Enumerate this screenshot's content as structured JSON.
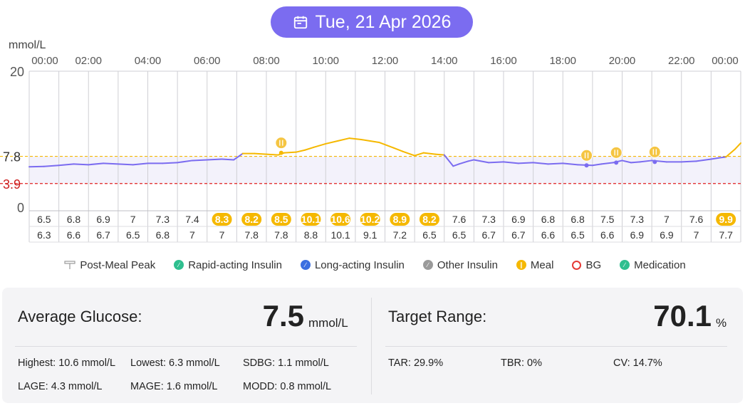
{
  "header": {
    "date_label": "Tue, 21 Apr 2026"
  },
  "chart_data": {
    "type": "line",
    "ylabel": "mmol/L",
    "ylim": [
      0,
      20
    ],
    "y_ticks": [
      "20",
      "7.8",
      "3.9",
      "0"
    ],
    "target_high": 7.8,
    "target_low": 3.9,
    "x_ticks": [
      "00:00",
      "02:00",
      "04:00",
      "06:00",
      "08:00",
      "10:00",
      "12:00",
      "14:00",
      "16:00",
      "18:00",
      "20:00",
      "22:00",
      "00:00"
    ],
    "series": [
      {
        "values": [
          [
            0,
            6.3
          ],
          [
            0.5,
            6.35
          ],
          [
            1,
            6.5
          ],
          [
            1.5,
            6.7
          ],
          [
            2,
            6.6
          ],
          [
            2.5,
            6.8
          ],
          [
            3,
            6.7
          ],
          [
            3.5,
            6.6
          ],
          [
            4,
            6.8
          ],
          [
            4.5,
            6.8
          ],
          [
            5,
            6.9
          ],
          [
            5.5,
            7.2
          ],
          [
            6,
            7.3
          ],
          [
            6.5,
            7.4
          ],
          [
            6.9,
            7.3
          ],
          [
            7.2,
            8.2
          ],
          [
            7.6,
            8.2
          ],
          [
            8,
            8.1
          ],
          [
            8.4,
            8.0
          ],
          [
            8.6,
            8.3
          ],
          [
            9,
            8.4
          ],
          [
            9.3,
            8.7
          ],
          [
            9.6,
            9.1
          ],
          [
            10,
            9.6
          ],
          [
            10.4,
            10.0
          ],
          [
            10.8,
            10.4
          ],
          [
            11.2,
            10.2
          ],
          [
            11.5,
            10.0
          ],
          [
            11.8,
            9.8
          ],
          [
            12.3,
            9.0
          ],
          [
            12.6,
            8.5
          ],
          [
            13,
            7.9
          ],
          [
            13.3,
            8.3
          ],
          [
            13.7,
            8.1
          ],
          [
            14,
            8.0
          ],
          [
            14.3,
            6.4
          ],
          [
            14.5,
            6.7
          ],
          [
            14.8,
            7.1
          ],
          [
            15,
            7.3
          ],
          [
            15.5,
            6.9
          ],
          [
            16,
            7.0
          ],
          [
            16.5,
            6.8
          ],
          [
            17,
            6.9
          ],
          [
            17.5,
            6.7
          ],
          [
            18,
            6.8
          ],
          [
            18.5,
            6.6
          ],
          [
            19,
            6.5
          ],
          [
            19.3,
            6.7
          ],
          [
            19.7,
            6.9
          ],
          [
            20,
            7.2
          ],
          [
            20.3,
            6.9
          ],
          [
            20.6,
            7.0
          ],
          [
            21,
            7.2
          ],
          [
            21.5,
            7.0
          ],
          [
            22,
            7.0
          ],
          [
            22.5,
            7.1
          ],
          [
            23,
            7.4
          ],
          [
            23.3,
            7.6
          ],
          [
            23.5,
            7.7
          ],
          [
            23.8,
            8.8
          ],
          [
            24,
            9.7
          ]
        ]
      }
    ],
    "hourly_top": [
      "6.5",
      "6.8",
      "6.9",
      "7",
      "7.3",
      "7.4",
      "8.3",
      "8.2",
      "8.5",
      "10.1",
      "10.6",
      "10.2",
      "8.9",
      "8.2",
      "7.6",
      "7.3",
      "6.9",
      "6.8",
      "6.8",
      "7.5",
      "7.3",
      "7",
      "7.6",
      "9.9"
    ],
    "hourly_bottom": [
      "6.3",
      "6.6",
      "6.7",
      "6.5",
      "6.8",
      "7",
      "7",
      "7.8",
      "7.8",
      "8.8",
      "10.1",
      "9.1",
      "7.2",
      "6.5",
      "6.5",
      "6.7",
      "6.7",
      "6.6",
      "6.5",
      "6.6",
      "6.9",
      "6.9",
      "7",
      "7.7"
    ],
    "meal_markers": [
      [
        8.5,
        8.3
      ],
      [
        18.8,
        6.5
      ],
      [
        19.8,
        6.9
      ],
      [
        21.1,
        7.0
      ]
    ],
    "colors": {
      "line": "#7b6cf0",
      "line_high": "#f5b800",
      "high_badge": "#f5b800",
      "target_high_line": "#f5b800",
      "target_low_line": "#e02020",
      "target_low_label": "#cc1f1f",
      "band": "#f3f2fb"
    }
  },
  "legend": [
    {
      "label": "Post-Meal Peak",
      "icon": "post-meal-peak-icon",
      "color": "#9a9a9a"
    },
    {
      "label": "Rapid-acting Insulin",
      "icon": "rapid-insulin-icon",
      "color": "#2fbf8f"
    },
    {
      "label": "Long-acting Insulin",
      "icon": "long-insulin-icon",
      "color": "#3b6fe0"
    },
    {
      "label": "Other Insulin",
      "icon": "other-insulin-icon",
      "color": "#9a9a9a"
    },
    {
      "label": "Meal",
      "icon": "meal-icon",
      "color": "#f5b800"
    },
    {
      "label": "BG",
      "icon": "bg-icon",
      "color": "#e53935"
    },
    {
      "label": "Medication",
      "icon": "medication-icon",
      "color": "#2fbf8f"
    }
  ],
  "stats": {
    "avg_label": "Average Glucose:",
    "avg_value": "7.5",
    "avg_unit": "mmol/L",
    "target_label": "Target Range:",
    "target_value": "70.1",
    "target_unit": "%",
    "highest": "Highest: 10.6 mmol/L",
    "lowest": "Lowest: 6.3 mmol/L",
    "sdbg": "SDBG: 1.1 mmol/L",
    "lage": "LAGE: 4.3 mmol/L",
    "mage": "MAGE: 1.6 mmol/L",
    "modd": "MODD: 0.8 mmol/L",
    "tar": "TAR: 29.9%",
    "tbr": "TBR: 0%",
    "cv": "CV: 14.7%"
  }
}
